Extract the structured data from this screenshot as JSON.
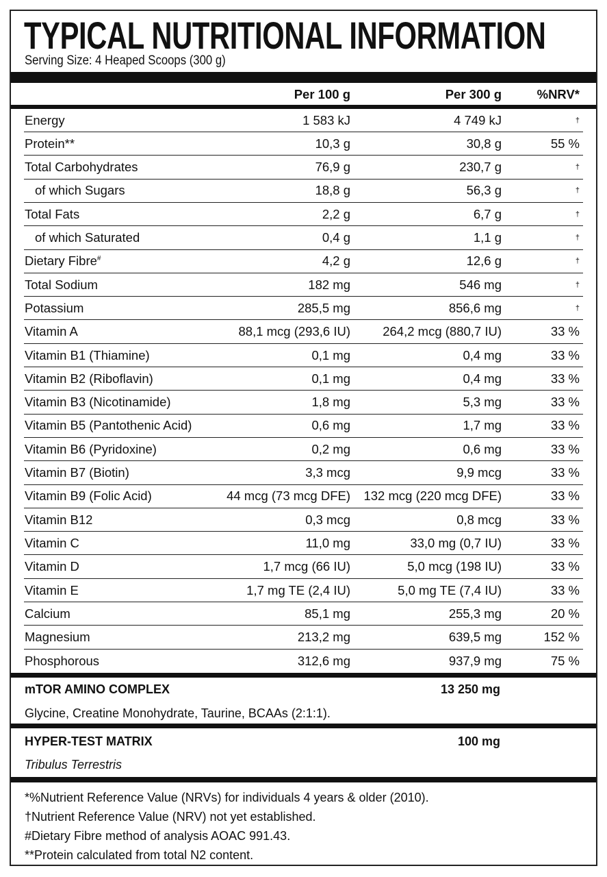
{
  "title": "TYPICAL NUTRITIONAL INFORMATION",
  "serving": "Serving Size: 4 Heaped Scoops (300 g)",
  "headers": {
    "per100": "Per 100 g",
    "per300": "Per 300 g",
    "nrv": "%NRV*"
  },
  "rows": [
    {
      "name": "Energy",
      "per100": "1 583 kJ",
      "per300": "4 749 kJ",
      "nrv": "†"
    },
    {
      "name": "Protein**",
      "per100": "10,3 g",
      "per300": "30,8 g",
      "nrv": "55 %"
    },
    {
      "name": "Total Carbohydrates",
      "per100": "76,9 g",
      "per300": "230,7 g",
      "nrv": "†"
    },
    {
      "name": "of which Sugars",
      "per100": "18,8 g",
      "per300": "56,3 g",
      "nrv": "†",
      "sub": true
    },
    {
      "name": "Total Fats",
      "per100": "2,2 g",
      "per300": "6,7 g",
      "nrv": "†"
    },
    {
      "name": "of which Saturated",
      "per100": "0,4 g",
      "per300": "1,1 g",
      "nrv": "†",
      "sub": true
    },
    {
      "name": "Dietary Fibre",
      "mark": "#",
      "per100": "4,2 g",
      "per300": "12,6 g",
      "nrv": "†"
    },
    {
      "name": "Total Sodium",
      "per100": "182 mg",
      "per300": "546 mg",
      "nrv": "†"
    },
    {
      "name": "Potassium",
      "per100": "285,5 mg",
      "per300": "856,6 mg",
      "nrv": "†"
    },
    {
      "name": "Vitamin A",
      "per100": "88,1 mcg (293,6 IU)",
      "per300": "264,2 mcg (880,7 IU)",
      "nrv": "33 %"
    },
    {
      "name": "Vitamin B1 (Thiamine)",
      "per100": "0,1 mg",
      "per300": "0,4 mg",
      "nrv": "33 %"
    },
    {
      "name": "Vitamin B2 (Riboflavin)",
      "per100": "0,1 mg",
      "per300": "0,4 mg",
      "nrv": "33 %"
    },
    {
      "name": "Vitamin B3 (Nicotinamide)",
      "per100": "1,8 mg",
      "per300": "5,3 mg",
      "nrv": "33 %"
    },
    {
      "name": "Vitamin B5 (Pantothenic Acid)",
      "per100": "0,6 mg",
      "per300": "1,7 mg",
      "nrv": "33 %"
    },
    {
      "name": "Vitamin B6 (Pyridoxine)",
      "per100": "0,2 mg",
      "per300": "0,6 mg",
      "nrv": "33 %"
    },
    {
      "name": "Vitamin B7 (Biotin)",
      "per100": "3,3 mcg",
      "per300": "9,9 mcg",
      "nrv": "33 %"
    },
    {
      "name": "Vitamin B9 (Folic Acid)",
      "per100": "44 mcg (73 mcg DFE)",
      "per300": "132 mcg (220 mcg DFE)",
      "nrv": "33 %"
    },
    {
      "name": "Vitamin B12",
      "per100": "0,3 mcg",
      "per300": "0,8 mcg",
      "nrv": "33 %"
    },
    {
      "name": "Vitamin C",
      "per100": "11,0 mg",
      "per300": "33,0 mg (0,7 IU)",
      "nrv": "33 %"
    },
    {
      "name": "Vitamin D",
      "per100": "1,7 mcg (66 IU)",
      "per300": "5,0 mcg (198 IU)",
      "nrv": "33 %"
    },
    {
      "name": "Vitamin E",
      "per100": "1,7 mg TE (2,4 IU)",
      "per300": "5,0 mg TE (7,4 IU)",
      "nrv": "33 %"
    },
    {
      "name": "Calcium",
      "per100": "85,1 mg",
      "per300": "255,3 mg",
      "nrv": "20 %"
    },
    {
      "name": "Magnesium",
      "per100": "213,2 mg",
      "per300": "639,5 mg",
      "nrv": "152 %"
    },
    {
      "name": "Phosphorous",
      "per100": "312,6 mg",
      "per300": "937,9 mg",
      "nrv": "75 %"
    }
  ],
  "mtor": {
    "title": "mTOR AMINO COMPLEX",
    "amount": "13 250 mg",
    "desc": "Glycine, Creatine Monohydrate, Taurine, BCAAs (2:1:1)."
  },
  "hyper": {
    "title": "HYPER-TEST MATRIX",
    "amount": "100 mg",
    "desc": "Tribulus Terrestris"
  },
  "footnotes": [
    "*%Nutrient Reference Value (NRVs) for individuals 4 years & older (2010).",
    "†Nutrient Reference Value (NRV) not yet established.",
    "#Dietary Fibre method of analysis AOAC 991.43.",
    "**Protein calculated from total N2 content."
  ]
}
